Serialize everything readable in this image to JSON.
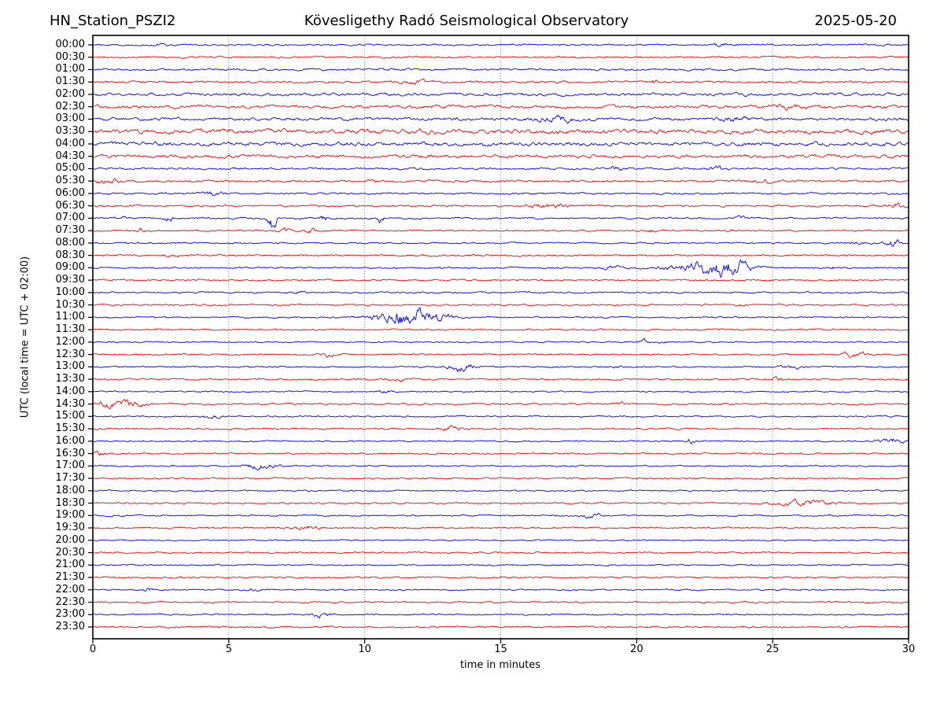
{
  "chart_data": {
    "type": "line",
    "subtype": "helicorder-seismogram",
    "title_left": "HN_Station_PSZI2",
    "title_center": "Kövesligethy Radó Seismological Observatory",
    "title_right": "2025-05-20",
    "xlabel": "time in minutes",
    "ylabel": "UTC (local time = UTC + 02:00)",
    "xlim": [
      0,
      30
    ],
    "x_ticks": [
      0,
      5,
      10,
      15,
      20,
      25,
      30
    ],
    "grid": "vertical dotted lines at 5-minute intervals",
    "legend": "none",
    "trace_color_even_rows": "#0000ff",
    "trace_color_odd_rows": "#ff0000",
    "row_minutes": 30,
    "events_format": "[start_minute, amplitude_px, sigma_minutes]",
    "rows": [
      {
        "label": "00:00",
        "color": "#0000ff",
        "noise": 1.0,
        "events": [
          [
            2.6,
            1.2,
            0.15
          ],
          [
            23.2,
            1.5,
            0.3
          ]
        ]
      },
      {
        "label": "00:30",
        "color": "#ff0000",
        "noise": 1.0,
        "events": []
      },
      {
        "label": "01:00",
        "color": "#0000ff",
        "noise": 1.3,
        "events": []
      },
      {
        "label": "01:30",
        "color": "#ff0000",
        "noise": 1.3,
        "events": [
          [
            12,
            1.5,
            0.4
          ],
          [
            20.6,
            1.5,
            0.15
          ]
        ]
      },
      {
        "label": "02:00",
        "color": "#0000ff",
        "noise": 1.8,
        "events": []
      },
      {
        "label": "02:30",
        "color": "#ff0000",
        "noise": 1.9,
        "events": [
          [
            25.5,
            1.5,
            0.4
          ]
        ]
      },
      {
        "label": "03:00",
        "color": "#0000ff",
        "noise": 1.9,
        "events": [
          [
            17,
            3.5,
            0.35
          ],
          [
            23.5,
            1.5,
            0.4
          ]
        ]
      },
      {
        "label": "03:30",
        "color": "#ff0000",
        "noise": 2.8,
        "events": []
      },
      {
        "label": "04:00",
        "color": "#0000ff",
        "noise": 2.4,
        "events": []
      },
      {
        "label": "04:30",
        "color": "#ff0000",
        "noise": 2.1,
        "events": [
          [
            12.3,
            1.5,
            0.2
          ]
        ]
      },
      {
        "label": "05:00",
        "color": "#0000ff",
        "noise": 1.3,
        "events": [
          [
            19.3,
            1.3,
            0.25
          ],
          [
            23,
            1.5,
            0.25
          ]
        ]
      },
      {
        "label": "05:30",
        "color": "#ff0000",
        "noise": 1.3,
        "events": [
          [
            0.6,
            2.0,
            0.3
          ],
          [
            24.6,
            1.5,
            0.3
          ]
        ]
      },
      {
        "label": "06:00",
        "color": "#0000ff",
        "noise": 1.1,
        "events": [
          [
            4.4,
            1.5,
            0.3
          ]
        ]
      },
      {
        "label": "06:30",
        "color": "#ff0000",
        "noise": 1.1,
        "events": [
          [
            16.8,
            1.8,
            0.5
          ],
          [
            29.6,
            1.5,
            0.3
          ]
        ]
      },
      {
        "label": "07:00",
        "color": "#0000ff",
        "noise": 1.0,
        "events": [
          [
            1.2,
            1.0,
            0.1
          ],
          [
            2.8,
            2.0,
            0.12
          ],
          [
            6.6,
            9.0,
            0.1
          ],
          [
            8.5,
            3.5,
            0.08
          ],
          [
            10.6,
            3.5,
            0.08
          ],
          [
            23.7,
            2.0,
            0.15
          ]
        ]
      },
      {
        "label": "07:30",
        "color": "#ff0000",
        "noise": 0.9,
        "events": [
          [
            1.75,
            2.5,
            0.08
          ],
          [
            7.1,
            1.5,
            0.2
          ],
          [
            8.0,
            1.5,
            0.15
          ],
          [
            20.5,
            1.3,
            0.1
          ],
          [
            23.5,
            1.0,
            0.1
          ]
        ]
      },
      {
        "label": "08:00",
        "color": "#0000ff",
        "noise": 0.9,
        "events": [
          [
            28,
            1.2,
            0.2
          ],
          [
            29.5,
            2.0,
            0.3
          ]
        ]
      },
      {
        "label": "08:30",
        "color": "#ff0000",
        "noise": 1.0,
        "events": [
          [
            3,
            1.2,
            0.2
          ]
        ]
      },
      {
        "label": "09:00",
        "color": "#0000ff",
        "noise": 1.0,
        "events": [
          [
            19,
            1.2,
            0.3
          ],
          [
            22,
            2.5,
            0.8
          ],
          [
            23,
            5.5,
            0.5
          ],
          [
            23.9,
            3.0,
            0.4
          ],
          [
            27.2,
            2.0,
            0.08
          ]
        ]
      },
      {
        "label": "09:30",
        "color": "#ff0000",
        "noise": 1.0,
        "events": []
      },
      {
        "label": "10:00",
        "color": "#0000ff",
        "noise": 0.9,
        "events": [
          [
            7.5,
            1.2,
            0.15
          ]
        ]
      },
      {
        "label": "10:30",
        "color": "#ff0000",
        "noise": 1.0,
        "events": []
      },
      {
        "label": "11:00",
        "color": "#0000ff",
        "noise": 0.9,
        "events": [
          [
            10.4,
            2.5,
            0.3
          ],
          [
            11.4,
            6.5,
            0.45
          ],
          [
            12.2,
            3.5,
            0.4
          ],
          [
            13,
            1.5,
            0.3
          ]
        ]
      },
      {
        "label": "11:30",
        "color": "#ff0000",
        "noise": 0.9,
        "events": []
      },
      {
        "label": "12:00",
        "color": "#0000ff",
        "noise": 0.8,
        "events": [
          [
            20.3,
            1.5,
            0.12
          ],
          [
            20.9,
            1.3,
            0.12
          ]
        ]
      },
      {
        "label": "12:30",
        "color": "#ff0000",
        "noise": 0.9,
        "events": [
          [
            8.7,
            1.5,
            0.25
          ],
          [
            28,
            1.6,
            0.4
          ]
        ]
      },
      {
        "label": "13:00",
        "color": "#0000ff",
        "noise": 0.8,
        "events": [
          [
            13.6,
            3.5,
            0.3
          ],
          [
            19.3,
            1.2,
            0.15
          ],
          [
            25.7,
            1.5,
            0.25
          ]
        ]
      },
      {
        "label": "13:30",
        "color": "#ff0000",
        "noise": 0.9,
        "events": [
          [
            11.2,
            1.2,
            0.3
          ],
          [
            25.2,
            1.5,
            0.25
          ]
        ]
      },
      {
        "label": "14:00",
        "color": "#0000ff",
        "noise": 0.8,
        "events": [
          [
            10.8,
            1.5,
            0.2
          ]
        ]
      },
      {
        "label": "14:30",
        "color": "#ff0000",
        "noise": 1.0,
        "events": [
          [
            0.7,
            2.2,
            0.5
          ],
          [
            1.6,
            1.8,
            0.3
          ],
          [
            19.3,
            1.2,
            0.15
          ]
        ]
      },
      {
        "label": "15:00",
        "color": "#0000ff",
        "noise": 0.9,
        "events": [
          [
            4.4,
            1.5,
            0.25
          ]
        ]
      },
      {
        "label": "15:30",
        "color": "#ff0000",
        "noise": 1.0,
        "events": [
          [
            13.2,
            2.0,
            0.3
          ]
        ]
      },
      {
        "label": "16:00",
        "color": "#0000ff",
        "noise": 0.8,
        "events": [
          [
            22,
            2.5,
            0.1
          ],
          [
            29.5,
            1.8,
            0.4
          ]
        ]
      },
      {
        "label": "16:30",
        "color": "#ff0000",
        "noise": 0.9,
        "events": [
          [
            0.3,
            1.5,
            0.2
          ]
        ]
      },
      {
        "label": "17:00",
        "color": "#0000ff",
        "noise": 0.8,
        "events": [
          [
            6.2,
            2.2,
            0.4
          ]
        ]
      },
      {
        "label": "17:30",
        "color": "#ff0000",
        "noise": 0.9,
        "events": []
      },
      {
        "label": "18:00",
        "color": "#0000ff",
        "noise": 0.8,
        "events": []
      },
      {
        "label": "18:30",
        "color": "#ff0000",
        "noise": 1.0,
        "events": [
          [
            26,
            1.8,
            0.8
          ]
        ]
      },
      {
        "label": "19:00",
        "color": "#0000ff",
        "noise": 0.9,
        "events": [
          [
            18.3,
            1.5,
            0.3
          ]
        ]
      },
      {
        "label": "19:30",
        "color": "#ff0000",
        "noise": 0.9,
        "events": [
          [
            7.8,
            1.6,
            0.35
          ]
        ]
      },
      {
        "label": "20:00",
        "color": "#0000ff",
        "noise": 0.8,
        "events": []
      },
      {
        "label": "20:30",
        "color": "#ff0000",
        "noise": 0.9,
        "events": []
      },
      {
        "label": "21:00",
        "color": "#0000ff",
        "noise": 0.8,
        "events": []
      },
      {
        "label": "21:30",
        "color": "#ff0000",
        "noise": 0.9,
        "events": []
      },
      {
        "label": "22:00",
        "color": "#0000ff",
        "noise": 0.8,
        "events": [
          [
            2,
            1.3,
            0.15
          ],
          [
            5.9,
            1.3,
            0.15
          ]
        ]
      },
      {
        "label": "22:30",
        "color": "#ff0000",
        "noise": 0.9,
        "events": []
      },
      {
        "label": "23:00",
        "color": "#0000ff",
        "noise": 0.9,
        "events": [
          [
            8.4,
            1.8,
            0.3
          ]
        ]
      },
      {
        "label": "23:30",
        "color": "#ff0000",
        "noise": 1.0,
        "events": []
      }
    ]
  }
}
